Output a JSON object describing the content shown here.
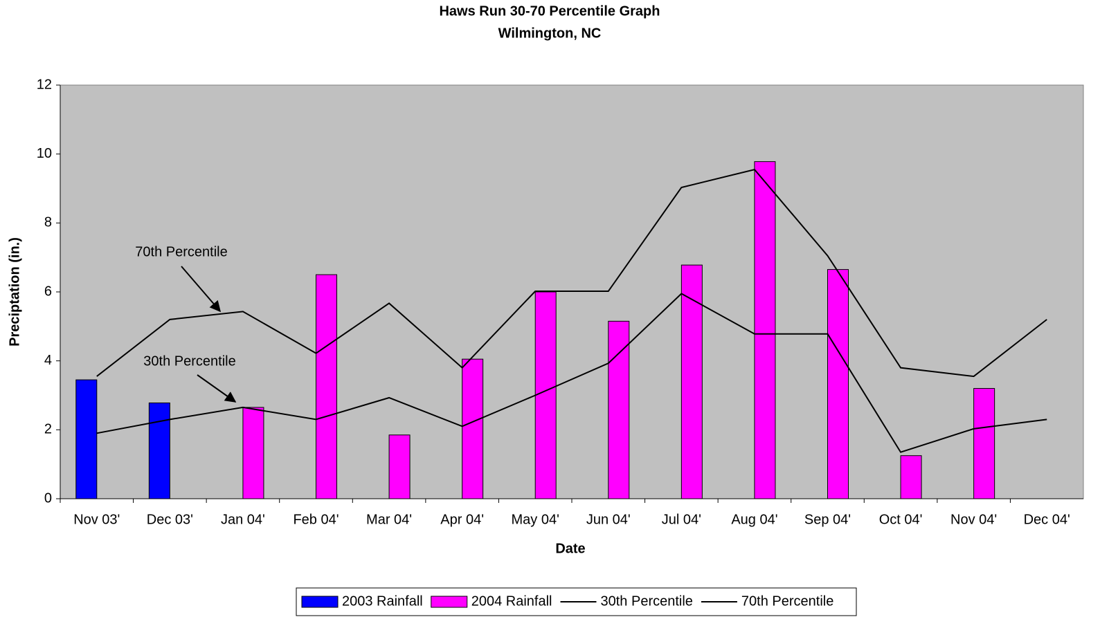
{
  "chart_data": {
    "type": "bar_line",
    "title": "Haws Run 30-70 Percentile Graph",
    "subtitle": "Wilmington, NC",
    "x_label": "Date",
    "y_label": "Preciptation (in.)",
    "categories": [
      "Nov 03'",
      "Dec 03'",
      "Jan 04'",
      "Feb 04'",
      "Mar 04'",
      "Apr 04'",
      "May 04'",
      "Jun 04'",
      "Jul 04'",
      "Aug 04'",
      "Sep 04'",
      "Oct 04'",
      "Nov 04'",
      "Dec 04'"
    ],
    "series": [
      {
        "name": "2003 Rainfall",
        "kind": "bar",
        "color": "#0000ff",
        "values": [
          3.45,
          2.78,
          null,
          null,
          null,
          null,
          null,
          null,
          null,
          null,
          null,
          null,
          null,
          null
        ]
      },
      {
        "name": "2004 Rainfall",
        "kind": "bar",
        "color": "#ff00ff",
        "values": [
          null,
          null,
          2.65,
          6.5,
          1.85,
          4.05,
          6.0,
          5.15,
          6.78,
          9.78,
          6.65,
          1.25,
          3.2,
          null
        ]
      },
      {
        "name": "30th Percentile",
        "kind": "line",
        "color": "#000000",
        "values": [
          1.9,
          2.3,
          2.65,
          2.3,
          2.93,
          2.1,
          3.0,
          3.93,
          5.95,
          4.78,
          4.78,
          1.35,
          2.03,
          2.3
        ]
      },
      {
        "name": "70th Percentile",
        "kind": "line",
        "color": "#000000",
        "values": [
          3.55,
          5.2,
          5.43,
          4.22,
          5.67,
          3.8,
          6.02,
          6.02,
          9.03,
          9.55,
          7.05,
          3.8,
          3.55,
          5.2
        ]
      }
    ],
    "annotations": [
      "70th Percentile",
      "30th Percentile"
    ],
    "ylim": [
      0,
      12
    ],
    "yticks": [
      0,
      2,
      4,
      6,
      8,
      10,
      12
    ],
    "background": "#c0c0c0"
  }
}
